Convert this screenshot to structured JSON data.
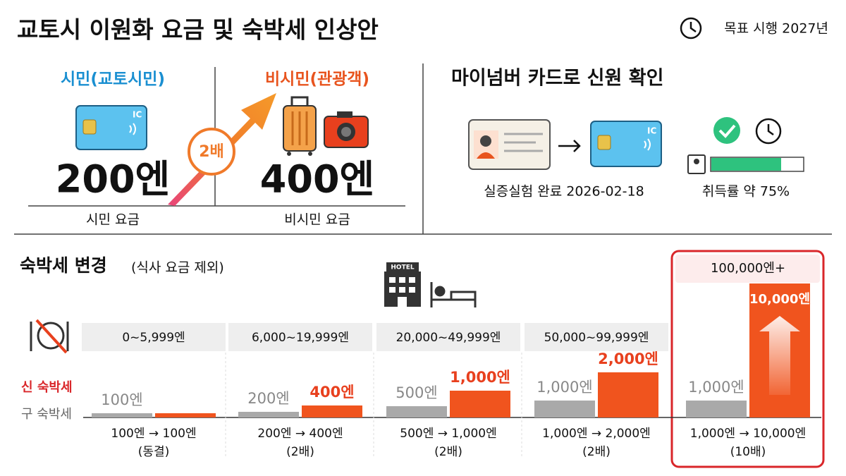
{
  "header": {
    "title": "교토시 이원화 요금 및 숙박세 인상안",
    "badge": "목표 시행 2027년"
  },
  "fare": {
    "resident": {
      "label": "시민(교토시민)",
      "card": "IC",
      "price": "200엔",
      "caption": "시민 요금"
    },
    "visitor": {
      "label": "비시민(관광객)",
      "price": "400엔",
      "caption": "비시민 요금"
    },
    "multiplier": "2배"
  },
  "mynumber": {
    "title": "마이넘버 카드로 신원 확인",
    "card": "IC",
    "trial": "실증실험 완료 2026-02-18",
    "rate": "취득률 약 75%"
  },
  "tax": {
    "title": "숙박세 변경",
    "note": "(식사 요금 제외)",
    "legend": {
      "new": "신 숙박세",
      "old": "구 숙박세"
    },
    "brackets": [
      {
        "range": "0~5,999엔",
        "old": "100엔",
        "new": "100엔",
        "change": "100엔 → 100엔",
        "ratio": "(동결)"
      },
      {
        "range": "6,000~19,999엔",
        "old": "200엔",
        "new": "400엔",
        "change": "200엔 → 400엔",
        "ratio": "(2배)"
      },
      {
        "range": "20,000~49,999엔",
        "old": "500엔",
        "new": "1,000엔",
        "change": "500엔 → 1,000엔",
        "ratio": "(2배)"
      },
      {
        "range": "50,000~99,999엔",
        "old": "1,000엔",
        "new": "2,000엔",
        "change": "1,000엔 → 2,000엔",
        "ratio": "(2배)"
      },
      {
        "range": "100,000엔+",
        "old": "1,000엔",
        "new": "10,000엔",
        "change": "1,000엔 → 10,000엔",
        "ratio": "(10배)"
      }
    ]
  }
}
